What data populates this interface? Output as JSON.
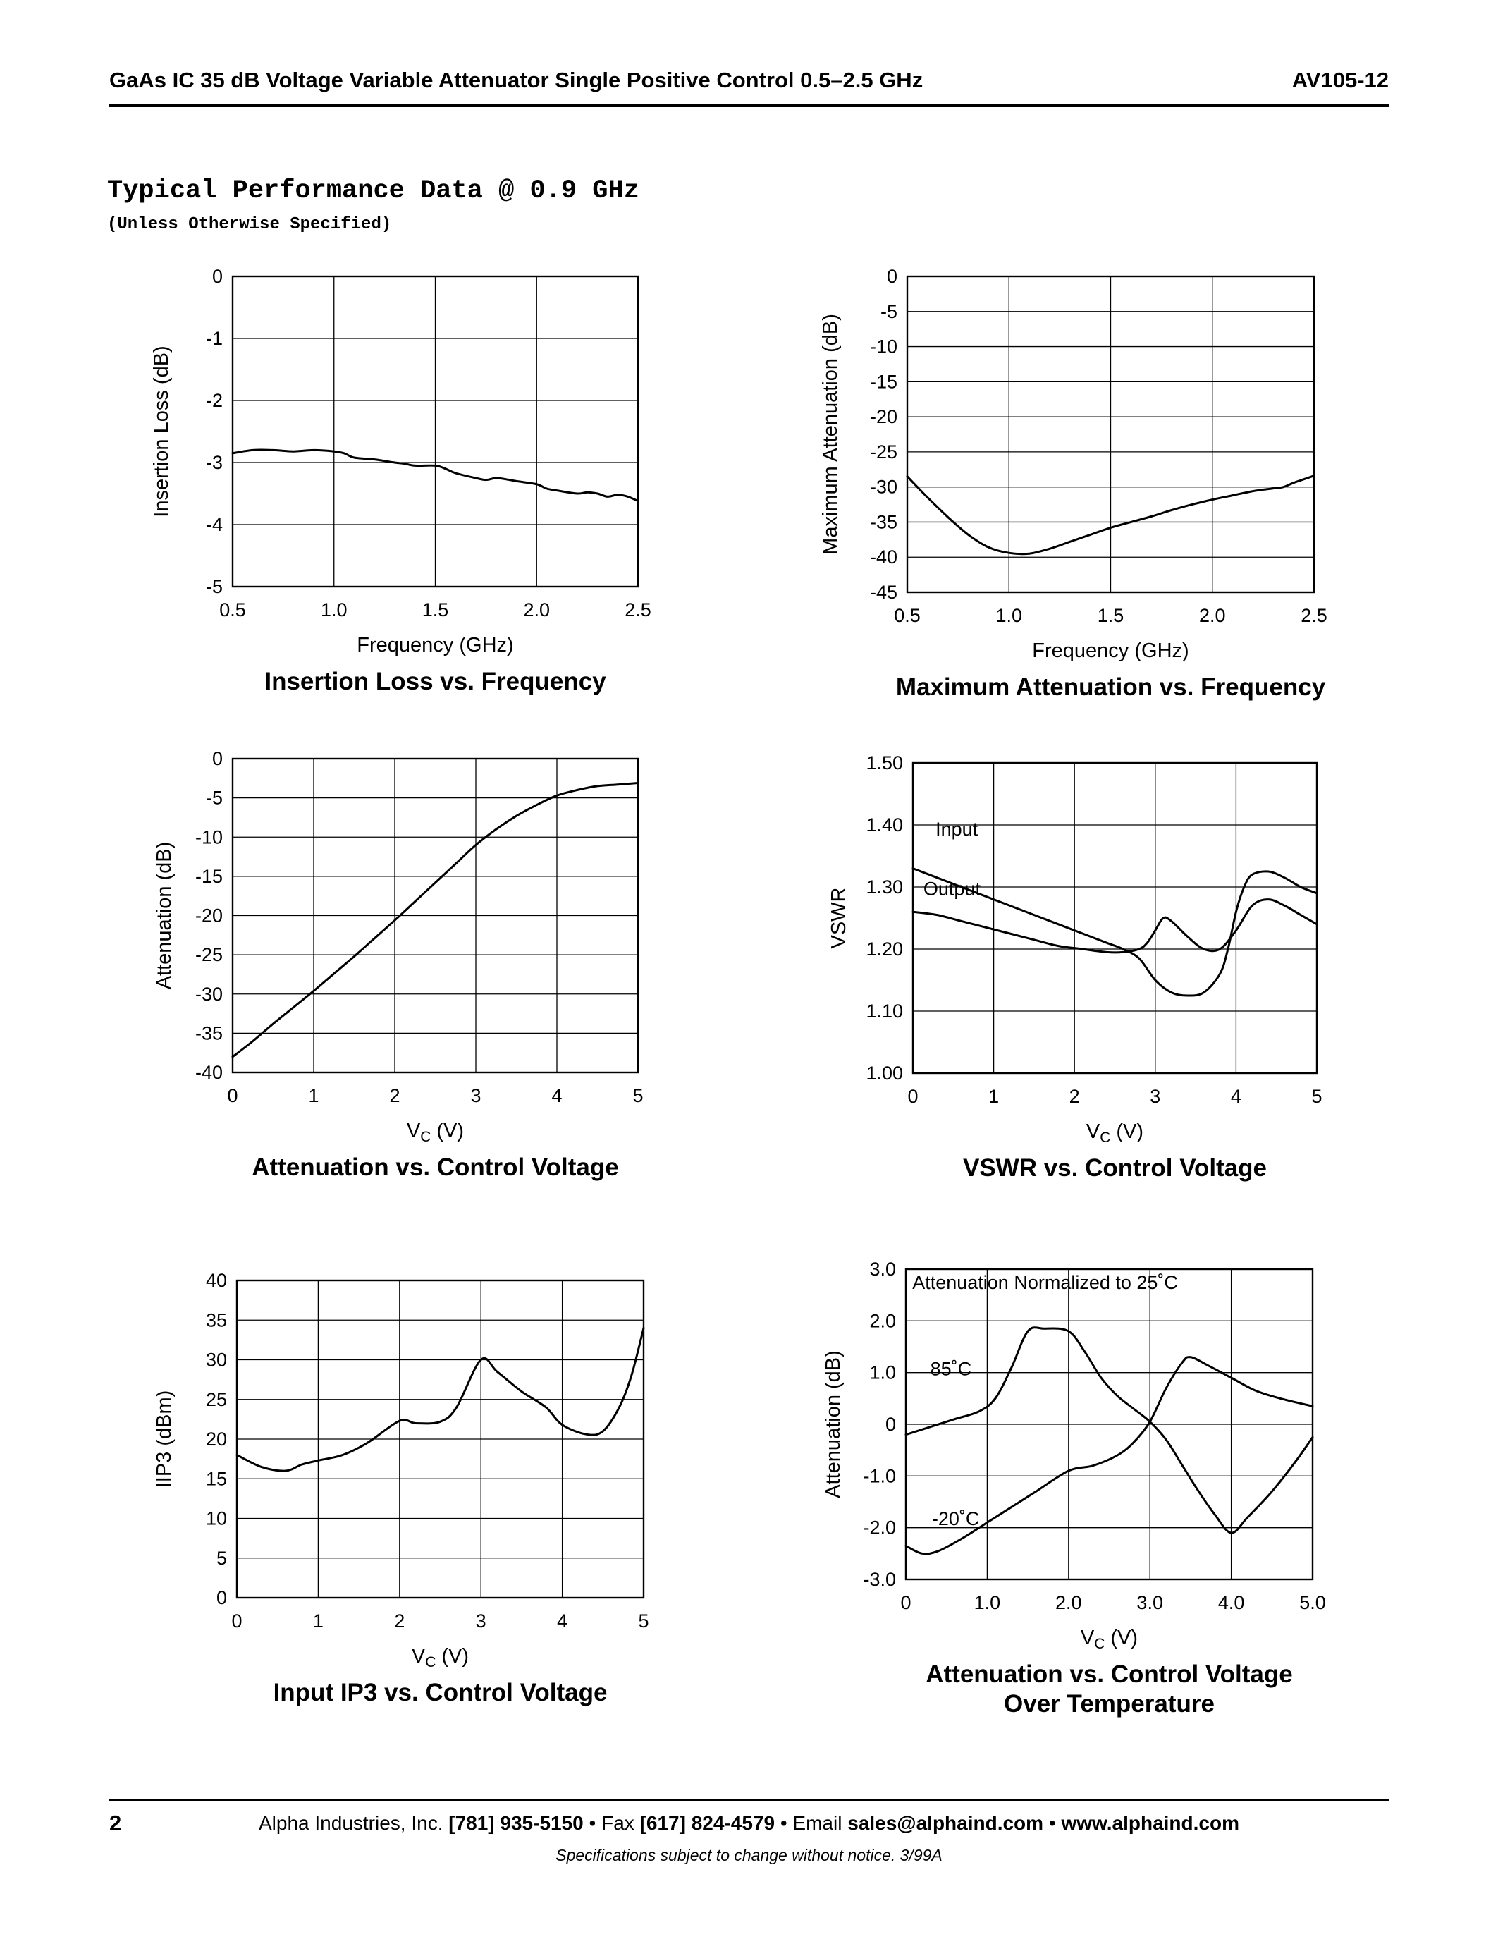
{
  "header": {
    "product": "GaAs IC 35 dB Voltage Variable Attenuator Single Positive Control 0.5–2.5 GHz",
    "part_number": "AV105-12"
  },
  "section": {
    "title": "Typical Performance Data @ 0.9 GHz",
    "subtitle": "(Unless Otherwise Specified)"
  },
  "footer": {
    "page_number": "2",
    "contact_segments": [
      {
        "text": "Alpha Industries, Inc. ",
        "bold": false
      },
      {
        "text": "[781] 935-5150",
        "bold": true
      },
      {
        "text": " • Fax ",
        "bold": false
      },
      {
        "text": "[617] 824-4579",
        "bold": true
      },
      {
        "text": " • Email ",
        "bold": false
      },
      {
        "text": "sales@alphaind.com",
        "bold": true
      },
      {
        "text": " • ",
        "bold": false
      },
      {
        "text": "www.alphaind.com",
        "bold": true
      }
    ],
    "legal": "Specifications subject to change without notice.   3/99A"
  },
  "chart_data": [
    {
      "id": "insertion-loss",
      "type": "line",
      "title": "Insertion Loss vs. Frequency",
      "xlabel": "Frequency (GHz)",
      "ylabel": "Insertion Loss (dB)",
      "xlim": [
        0.5,
        2.5
      ],
      "ylim": [
        -5,
        0
      ],
      "xticks": [
        0.5,
        1.0,
        1.5,
        2.0,
        2.5
      ],
      "xtick_labels": [
        "0.5",
        "1.0",
        "1.5",
        "2.0",
        "2.5"
      ],
      "yticks": [
        0,
        -1,
        -2,
        -3,
        -4,
        -5
      ],
      "ytick_labels": [
        "0",
        "-1",
        "-2",
        "-3",
        "-4",
        "-5"
      ],
      "grid": true,
      "series": [
        {
          "name": "insertion_loss",
          "points": [
            [
              0.5,
              -2.85
            ],
            [
              0.6,
              -2.8
            ],
            [
              0.7,
              -2.8
            ],
            [
              0.8,
              -2.82
            ],
            [
              0.9,
              -2.8
            ],
            [
              1.0,
              -2.82
            ],
            [
              1.05,
              -2.85
            ],
            [
              1.1,
              -2.92
            ],
            [
              1.2,
              -2.95
            ],
            [
              1.3,
              -3.0
            ],
            [
              1.35,
              -3.02
            ],
            [
              1.4,
              -3.05
            ],
            [
              1.5,
              -3.05
            ],
            [
              1.55,
              -3.1
            ],
            [
              1.6,
              -3.17
            ],
            [
              1.7,
              -3.25
            ],
            [
              1.75,
              -3.28
            ],
            [
              1.8,
              -3.25
            ],
            [
              1.85,
              -3.27
            ],
            [
              1.9,
              -3.3
            ],
            [
              2.0,
              -3.35
            ],
            [
              2.05,
              -3.42
            ],
            [
              2.1,
              -3.45
            ],
            [
              2.2,
              -3.5
            ],
            [
              2.25,
              -3.48
            ],
            [
              2.3,
              -3.5
            ],
            [
              2.35,
              -3.55
            ],
            [
              2.4,
              -3.52
            ],
            [
              2.45,
              -3.55
            ],
            [
              2.5,
              -3.62
            ]
          ]
        }
      ],
      "annotations": []
    },
    {
      "id": "max-attenuation",
      "type": "line",
      "title": "Maximum Attenuation vs. Frequency",
      "xlabel": "Frequency (GHz)",
      "ylabel": "Maximum Attenuation (dB)",
      "xlim": [
        0.5,
        2.5
      ],
      "ylim": [
        -45,
        0
      ],
      "xticks": [
        0.5,
        1.0,
        1.5,
        2.0,
        2.5
      ],
      "xtick_labels": [
        "0.5",
        "1.0",
        "1.5",
        "2.0",
        "2.5"
      ],
      "yticks": [
        0,
        -5,
        -10,
        -15,
        -20,
        -25,
        -30,
        -35,
        -40,
        -45
      ],
      "ytick_labels": [
        "0",
        "-5",
        "-10",
        "-15",
        "-20",
        "-25",
        "-30",
        "-35",
        "-40",
        "-45"
      ],
      "grid": true,
      "series": [
        {
          "name": "max_attenuation",
          "points": [
            [
              0.5,
              -28.5
            ],
            [
              0.6,
              -31.5
            ],
            [
              0.7,
              -34.3
            ],
            [
              0.8,
              -36.8
            ],
            [
              0.9,
              -38.6
            ],
            [
              1.0,
              -39.4
            ],
            [
              1.1,
              -39.5
            ],
            [
              1.2,
              -38.8
            ],
            [
              1.3,
              -37.8
            ],
            [
              1.4,
              -36.8
            ],
            [
              1.5,
              -35.8
            ],
            [
              1.6,
              -35.0
            ],
            [
              1.7,
              -34.2
            ],
            [
              1.8,
              -33.3
            ],
            [
              1.9,
              -32.5
            ],
            [
              2.0,
              -31.8
            ],
            [
              2.1,
              -31.2
            ],
            [
              2.2,
              -30.6
            ],
            [
              2.3,
              -30.2
            ],
            [
              2.35,
              -30.0
            ],
            [
              2.4,
              -29.4
            ],
            [
              2.45,
              -28.9
            ],
            [
              2.5,
              -28.4
            ]
          ]
        }
      ],
      "annotations": []
    },
    {
      "id": "attenuation-vs-vc",
      "type": "line",
      "title": "Attenuation vs. Control Voltage",
      "xlabel": "V_C (V)",
      "ylabel": "Attenuation (dB)",
      "xlim": [
        0,
        5
      ],
      "ylim": [
        -40,
        0
      ],
      "xticks": [
        0,
        1,
        2,
        3,
        4,
        5
      ],
      "xtick_labels": [
        "0",
        "1",
        "2",
        "3",
        "4",
        "5"
      ],
      "yticks": [
        0,
        -5,
        -10,
        -15,
        -20,
        -25,
        -30,
        -35,
        -40
      ],
      "ytick_labels": [
        "0",
        "-5",
        "-10",
        "-15",
        "-20",
        "-25",
        "-30",
        "-35",
        "-40"
      ],
      "grid": true,
      "series": [
        {
          "name": "attenuation",
          "points": [
            [
              0,
              -38
            ],
            [
              0.25,
              -36
            ],
            [
              0.5,
              -33.8
            ],
            [
              0.75,
              -31.7
            ],
            [
              1,
              -29.6
            ],
            [
              1.25,
              -27.4
            ],
            [
              1.5,
              -25.2
            ],
            [
              1.75,
              -22.9
            ],
            [
              2,
              -20.6
            ],
            [
              2.25,
              -18.2
            ],
            [
              2.5,
              -15.8
            ],
            [
              2.75,
              -13.4
            ],
            [
              3,
              -11
            ],
            [
              3.25,
              -9
            ],
            [
              3.5,
              -7.3
            ],
            [
              3.75,
              -5.9
            ],
            [
              4,
              -4.7
            ],
            [
              4.25,
              -4.0
            ],
            [
              4.5,
              -3.5
            ],
            [
              4.75,
              -3.3
            ],
            [
              5,
              -3.1
            ]
          ]
        }
      ],
      "annotations": []
    },
    {
      "id": "vswr-vs-vc",
      "type": "line",
      "title": "VSWR vs. Control Voltage",
      "xlabel": "V_C (V)",
      "ylabel": "VSWR",
      "xlim": [
        0,
        5
      ],
      "ylim": [
        1.0,
        1.5
      ],
      "xticks": [
        0,
        1,
        2,
        3,
        4,
        5
      ],
      "xtick_labels": [
        "0",
        "1",
        "2",
        "3",
        "4",
        "5"
      ],
      "yticks": [
        1.5,
        1.4,
        1.3,
        1.2,
        1.1,
        1.0
      ],
      "ytick_labels": [
        "1.50",
        "1.40",
        "1.30",
        "1.20",
        "1.10",
        "1.00"
      ],
      "grid": true,
      "series": [
        {
          "name": "Input",
          "points": [
            [
              0,
              1.33
            ],
            [
              0.3,
              1.315
            ],
            [
              0.6,
              1.3
            ],
            [
              0.9,
              1.285
            ],
            [
              1.2,
              1.27
            ],
            [
              1.5,
              1.255
            ],
            [
              1.8,
              1.24
            ],
            [
              2.1,
              1.225
            ],
            [
              2.4,
              1.21
            ],
            [
              2.6,
              1.2
            ],
            [
              2.8,
              1.185
            ],
            [
              3.0,
              1.15
            ],
            [
              3.2,
              1.13
            ],
            [
              3.4,
              1.125
            ],
            [
              3.6,
              1.13
            ],
            [
              3.8,
              1.16
            ],
            [
              3.9,
              1.2
            ],
            [
              4.0,
              1.26
            ],
            [
              4.1,
              1.3
            ],
            [
              4.2,
              1.32
            ],
            [
              4.4,
              1.325
            ],
            [
              4.6,
              1.315
            ],
            [
              4.8,
              1.3
            ],
            [
              5.0,
              1.29
            ]
          ]
        },
        {
          "name": "Output",
          "points": [
            [
              0,
              1.26
            ],
            [
              0.3,
              1.255
            ],
            [
              0.6,
              1.245
            ],
            [
              0.9,
              1.235
            ],
            [
              1.2,
              1.225
            ],
            [
              1.5,
              1.215
            ],
            [
              1.8,
              1.205
            ],
            [
              2.1,
              1.2
            ],
            [
              2.4,
              1.195
            ],
            [
              2.6,
              1.195
            ],
            [
              2.8,
              1.2
            ],
            [
              2.9,
              1.21
            ],
            [
              3.0,
              1.23
            ],
            [
              3.1,
              1.25
            ],
            [
              3.2,
              1.245
            ],
            [
              3.4,
              1.22
            ],
            [
              3.6,
              1.2
            ],
            [
              3.8,
              1.2
            ],
            [
              4.0,
              1.23
            ],
            [
              4.2,
              1.27
            ],
            [
              4.4,
              1.28
            ],
            [
              4.6,
              1.27
            ],
            [
              4.8,
              1.255
            ],
            [
              5.0,
              1.24
            ]
          ]
        }
      ],
      "annotations": [
        {
          "text": "Input",
          "x": 0.28,
          "y": 1.383,
          "anchor": "start"
        },
        {
          "text": "Output",
          "x": 0.13,
          "y": 1.287,
          "anchor": "start"
        }
      ]
    },
    {
      "id": "iip3-vs-vc",
      "type": "line",
      "title": "Input IP3 vs. Control Voltage",
      "xlabel": "V_C (V)",
      "ylabel": "IIP3 (dBm)",
      "xlim": [
        0,
        5
      ],
      "ylim": [
        0,
        40
      ],
      "xticks": [
        0,
        1,
        2,
        3,
        4,
        5
      ],
      "xtick_labels": [
        "0",
        "1",
        "2",
        "3",
        "4",
        "5"
      ],
      "yticks": [
        40,
        35,
        30,
        25,
        20,
        15,
        10,
        5,
        0
      ],
      "ytick_labels": [
        "40",
        "35",
        "30",
        "25",
        "20",
        "15",
        "10",
        "5",
        "0"
      ],
      "grid": true,
      "series": [
        {
          "name": "iip3",
          "points": [
            [
              0,
              18
            ],
            [
              0.3,
              16.5
            ],
            [
              0.6,
              16
            ],
            [
              0.8,
              16.8
            ],
            [
              1.0,
              17.3
            ],
            [
              1.3,
              18
            ],
            [
              1.6,
              19.5
            ],
            [
              2.0,
              22.3
            ],
            [
              2.2,
              22
            ],
            [
              2.5,
              22.2
            ],
            [
              2.7,
              24
            ],
            [
              3.0,
              30
            ],
            [
              3.2,
              28.5
            ],
            [
              3.5,
              26
            ],
            [
              3.8,
              24
            ],
            [
              4.0,
              21.8
            ],
            [
              4.3,
              20.6
            ],
            [
              4.5,
              21
            ],
            [
              4.7,
              24
            ],
            [
              4.85,
              28
            ],
            [
              5.0,
              34
            ]
          ]
        }
      ],
      "annotations": []
    },
    {
      "id": "attenuation-over-temp",
      "type": "line",
      "title": "Attenuation vs. Control Voltage\nOver Temperature",
      "xlabel": "V_C (V)",
      "ylabel": "Attenuation (dB)",
      "xlim": [
        0,
        5
      ],
      "ylim": [
        -3.0,
        3.0
      ],
      "xticks": [
        0,
        1,
        2,
        3,
        4,
        5
      ],
      "xtick_labels": [
        "0",
        "1.0",
        "2.0",
        "3.0",
        "4.0",
        "5.0"
      ],
      "yticks": [
        3.0,
        2.0,
        1.0,
        0,
        -1.0,
        -2.0,
        -3.0
      ],
      "ytick_labels": [
        "3.0",
        "2.0",
        "1.0",
        "0",
        "-1.0",
        "-2.0",
        "-3.0"
      ],
      "grid": true,
      "series": [
        {
          "name": "85˚C",
          "points": [
            [
              0,
              -0.2
            ],
            [
              0.3,
              -0.05
            ],
            [
              0.6,
              0.1
            ],
            [
              0.9,
              0.25
            ],
            [
              1.1,
              0.5
            ],
            [
              1.3,
              1.1
            ],
            [
              1.5,
              1.8
            ],
            [
              1.7,
              1.85
            ],
            [
              2.0,
              1.8
            ],
            [
              2.2,
              1.4
            ],
            [
              2.4,
              0.9
            ],
            [
              2.6,
              0.55
            ],
            [
              2.8,
              0.3
            ],
            [
              3.0,
              0.05
            ],
            [
              3.2,
              -0.3
            ],
            [
              3.4,
              -0.8
            ],
            [
              3.6,
              -1.3
            ],
            [
              3.8,
              -1.75
            ],
            [
              4.0,
              -2.1
            ],
            [
              4.2,
              -1.8
            ],
            [
              4.5,
              -1.3
            ],
            [
              4.8,
              -0.7
            ],
            [
              5.0,
              -0.25
            ]
          ]
        },
        {
          "name": "-20˚C",
          "points": [
            [
              0,
              -2.35
            ],
            [
              0.2,
              -2.5
            ],
            [
              0.4,
              -2.45
            ],
            [
              0.7,
              -2.2
            ],
            [
              1.0,
              -1.9
            ],
            [
              1.3,
              -1.6
            ],
            [
              1.6,
              -1.3
            ],
            [
              2.0,
              -0.9
            ],
            [
              2.3,
              -0.8
            ],
            [
              2.6,
              -0.6
            ],
            [
              2.8,
              -0.35
            ],
            [
              3.0,
              0.05
            ],
            [
              3.2,
              0.7
            ],
            [
              3.4,
              1.2
            ],
            [
              3.5,
              1.3
            ],
            [
              3.7,
              1.15
            ],
            [
              4.0,
              0.9
            ],
            [
              4.3,
              0.65
            ],
            [
              4.6,
              0.5
            ],
            [
              5.0,
              0.35
            ]
          ]
        }
      ],
      "annotations": [
        {
          "text": "Attenuation Normalized to 25˚C",
          "x": 0.08,
          "y": 2.62,
          "anchor": "start"
        },
        {
          "text": "85˚C",
          "x": 0.3,
          "y": 0.95,
          "anchor": "start"
        },
        {
          "text": "-20˚C",
          "x": 0.32,
          "y": -1.95,
          "anchor": "start"
        }
      ]
    }
  ]
}
